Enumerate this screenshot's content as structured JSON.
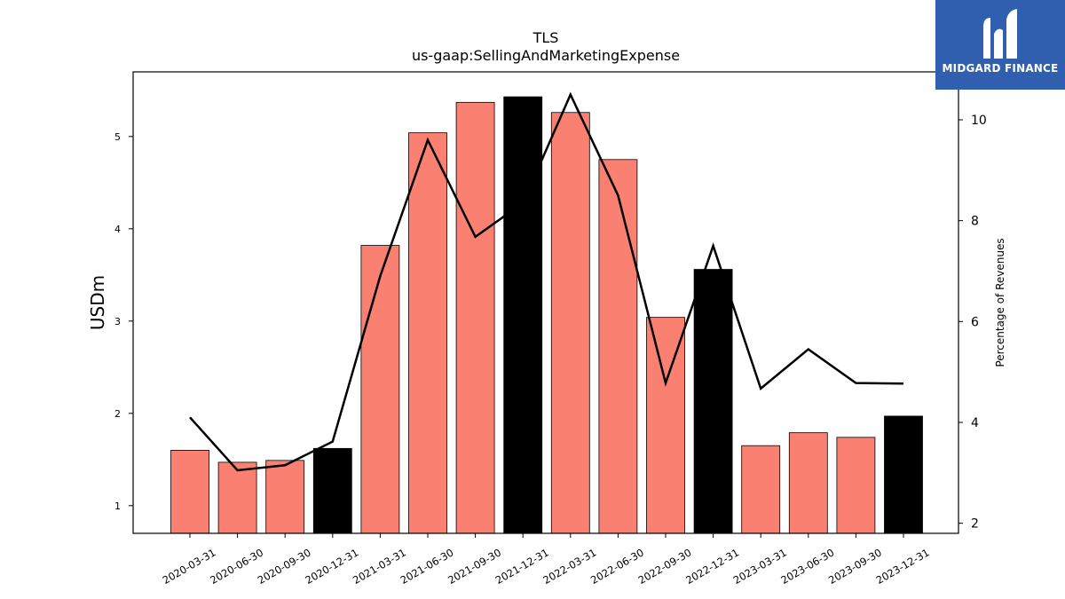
{
  "chart_data": {
    "type": "bar",
    "title": "TLS",
    "subtitle": "us-gaap:SellingAndMarketingExpense",
    "ylabel": "USDm",
    "y2label": "Percentage of Revenues",
    "categories": [
      "2020-03-31",
      "2020-06-30",
      "2020-09-30",
      "2020-12-31",
      "2021-03-31",
      "2021-06-30",
      "2021-09-30",
      "2021-12-31",
      "2022-03-31",
      "2022-06-30",
      "2022-09-30",
      "2022-12-31",
      "2023-03-31",
      "2023-06-30",
      "2023-09-30",
      "2023-12-31"
    ],
    "series": [
      {
        "type": "bar",
        "axis": "left",
        "values": [
          1.6,
          1.47,
          1.49,
          1.62,
          3.82,
          5.04,
          5.37,
          5.43,
          5.26,
          4.75,
          3.04,
          3.56,
          1.65,
          1.79,
          1.74,
          1.97
        ],
        "colors": [
          "#fa8072",
          "#fa8072",
          "#fa8072",
          "#000000",
          "#fa8072",
          "#fa8072",
          "#fa8072",
          "#000000",
          "#fa8072",
          "#fa8072",
          "#fa8072",
          "#000000",
          "#fa8072",
          "#fa8072",
          "#fa8072",
          "#000000"
        ]
      },
      {
        "type": "line",
        "axis": "right",
        "color": "#000000",
        "values": [
          4.1,
          3.05,
          3.15,
          3.62,
          6.9,
          9.6,
          7.68,
          8.35,
          10.5,
          8.5,
          4.78,
          7.5,
          4.67,
          5.45,
          4.78,
          4.77
        ]
      }
    ],
    "ylim": [
      0.7,
      5.7
    ],
    "y2lim": [
      1.8,
      10.95
    ],
    "yticks": [
      1,
      2,
      3,
      4,
      5
    ],
    "y2ticks": [
      2,
      4,
      6,
      8,
      10
    ],
    "grid": false
  },
  "logo": {
    "text": "MIDGARD FINANCE",
    "background": "#2f5fae"
  }
}
